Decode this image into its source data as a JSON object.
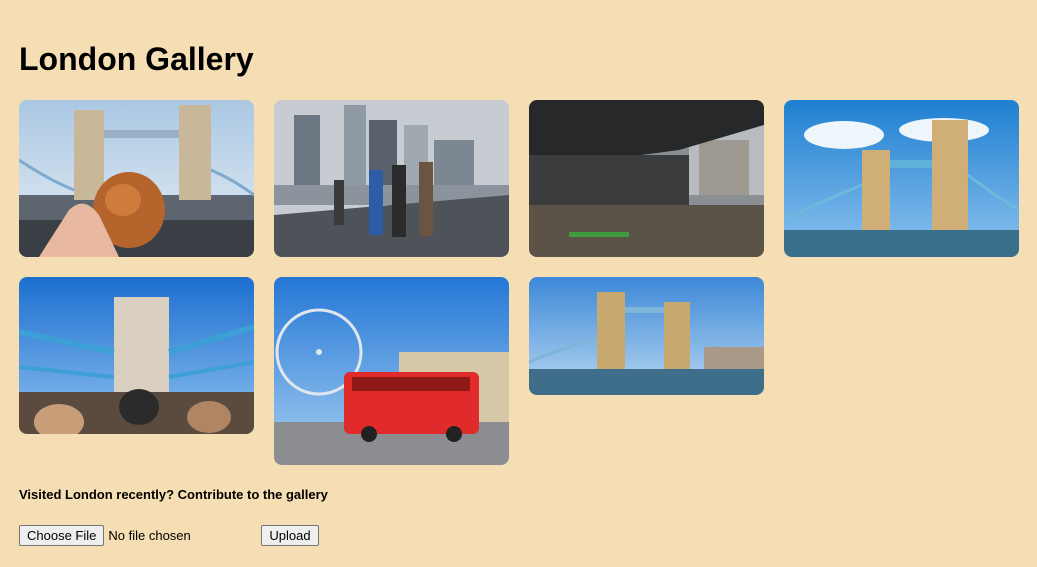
{
  "page": {
    "title": "London Gallery",
    "background_color": "#f5deb3"
  },
  "gallery": {
    "images": [
      {
        "name": "tower-bridge-pastry-photo",
        "subject": "Tower Bridge with pastry"
      },
      {
        "name": "city-walkway-photo",
        "subject": "City skyline walkway"
      },
      {
        "name": "under-bridge-river-photo",
        "subject": "Under the bridge river view"
      },
      {
        "name": "tower-bridge-sunny-photo",
        "subject": "Tower Bridge sunny day"
      },
      {
        "name": "tower-bridge-deck-photo",
        "subject": "Tower Bridge from bus deck"
      },
      {
        "name": "london-eye-bus-photo",
        "subject": "London Eye and red bus"
      },
      {
        "name": "tower-bridge-river-photo",
        "subject": "Tower Bridge from river"
      }
    ]
  },
  "contribute": {
    "prompt": "Visited London recently? Contribute to the gallery",
    "choose_file_label": "Choose File",
    "file_status": "No file chosen",
    "upload_label": "Upload"
  }
}
